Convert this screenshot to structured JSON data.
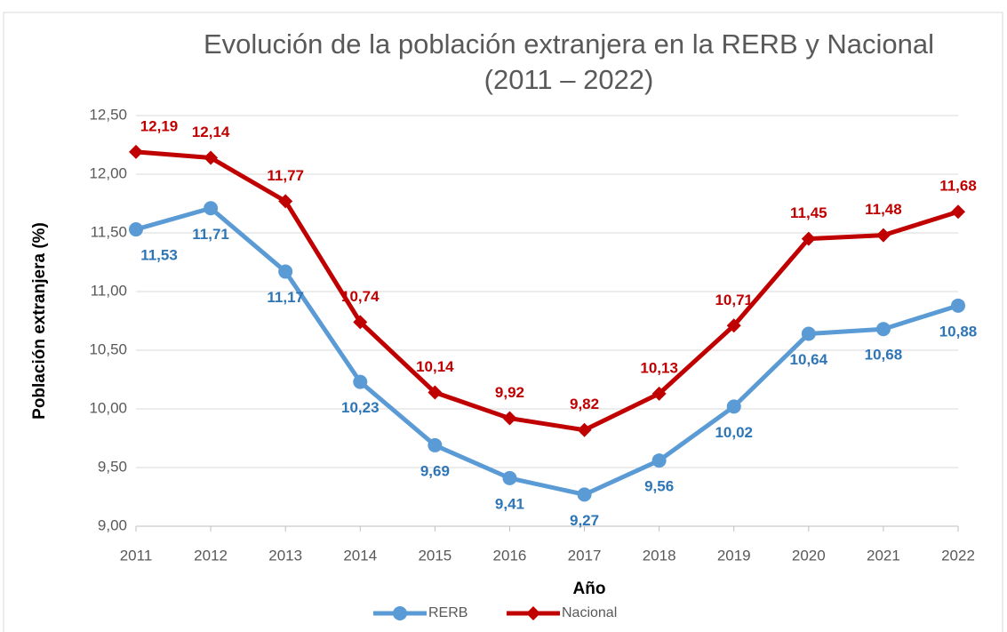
{
  "chart_data": {
    "type": "line",
    "title": "Evolución de la población extranjera en la RERB y Nacional (2011 – 2022)",
    "x_label": "Año",
    "y_label": "Población extranjera (%)",
    "categories": [
      "2011",
      "2012",
      "2013",
      "2014",
      "2015",
      "2016",
      "2017",
      "2018",
      "2019",
      "2020",
      "2021",
      "2022"
    ],
    "series": [
      {
        "name": "RERB",
        "color": "#5b9bd5",
        "marker": "circle",
        "values": [
          11.53,
          11.71,
          11.17,
          10.23,
          9.69,
          9.41,
          9.27,
          9.56,
          10.02,
          10.64,
          10.68,
          10.88
        ],
        "value_labels": [
          "11,53",
          "11,71",
          "11,17",
          "10,23",
          "9,69",
          "9,41",
          "9,27",
          "9,56",
          "10,02",
          "10,64",
          "10,68",
          "10,88"
        ]
      },
      {
        "name": "Nacional",
        "color": "#c00000",
        "marker": "diamond",
        "values": [
          12.19,
          12.14,
          11.77,
          10.74,
          10.14,
          9.92,
          9.82,
          10.13,
          10.71,
          11.45,
          11.48,
          11.68
        ],
        "value_labels": [
          "12,19",
          "12,14",
          "11,77",
          "10,74",
          "10,14",
          "9,92",
          "9,82",
          "10,13",
          "10,71",
          "11,45",
          "11,48",
          "11,68"
        ]
      }
    ],
    "ylim": [
      9,
      12.5
    ],
    "yticks": [
      {
        "value": 9,
        "label": "9,00"
      },
      {
        "value": 9.5,
        "label": "9,50"
      },
      {
        "value": 10,
        "label": "10,00"
      },
      {
        "value": 10.5,
        "label": "10,50"
      },
      {
        "value": 11,
        "label": "11,00"
      },
      {
        "value": 11.5,
        "label": "11,50"
      },
      {
        "value": 12,
        "label": "12,00"
      },
      {
        "value": 12.5,
        "label": "12,50"
      }
    ],
    "grid": true,
    "legend": "bottom"
  }
}
